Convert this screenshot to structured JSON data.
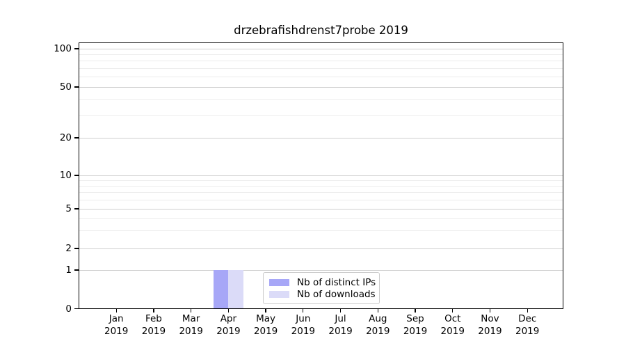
{
  "title": "drzebrafishdrenst7probe 2019",
  "legend": {
    "items": [
      {
        "label": "Nb of distinct IPs",
        "color": "#a7a7f7"
      },
      {
        "label": "Nb of downloads",
        "color": "#dbdbf8"
      }
    ]
  },
  "colors": {
    "bar_distinct_ips": "#a7a7f7",
    "bar_downloads": "#dbdbf8",
    "grid_major": "#cfcfcf",
    "grid_minor": "#ececec",
    "axis": "#000000",
    "legend_border": "#cccccc",
    "background": "#ffffff",
    "text": "#000000"
  },
  "chart_data": {
    "type": "bar",
    "title": "drzebrafishdrenst7probe 2019",
    "categories": [
      "Jan 2019",
      "Feb 2019",
      "Mar 2019",
      "Apr 2019",
      "May 2019",
      "Jun 2019",
      "Jul 2019",
      "Aug 2019",
      "Sep 2019",
      "Oct 2019",
      "Nov 2019",
      "Dec 2019"
    ],
    "series": [
      {
        "name": "Nb of distinct IPs",
        "color": "#a7a7f7",
        "values": [
          0,
          0,
          0,
          1,
          0,
          0,
          0,
          0,
          0,
          0,
          0,
          0
        ]
      },
      {
        "name": "Nb of downloads",
        "color": "#dbdbf8",
        "values": [
          0,
          0,
          0,
          1,
          0,
          0,
          0,
          0,
          0,
          0,
          0,
          0
        ]
      }
    ],
    "xlabel": "",
    "ylabel": "",
    "yscale": "symlog",
    "ylim": [
      0,
      110
    ],
    "y_major_ticks": [
      0,
      1,
      2,
      5,
      10,
      20,
      50,
      100
    ],
    "y_minor_ticks": [
      3,
      4,
      6,
      7,
      8,
      9,
      30,
      40,
      60,
      70,
      80,
      90
    ],
    "grid": true,
    "legend_position": "lower center"
  }
}
